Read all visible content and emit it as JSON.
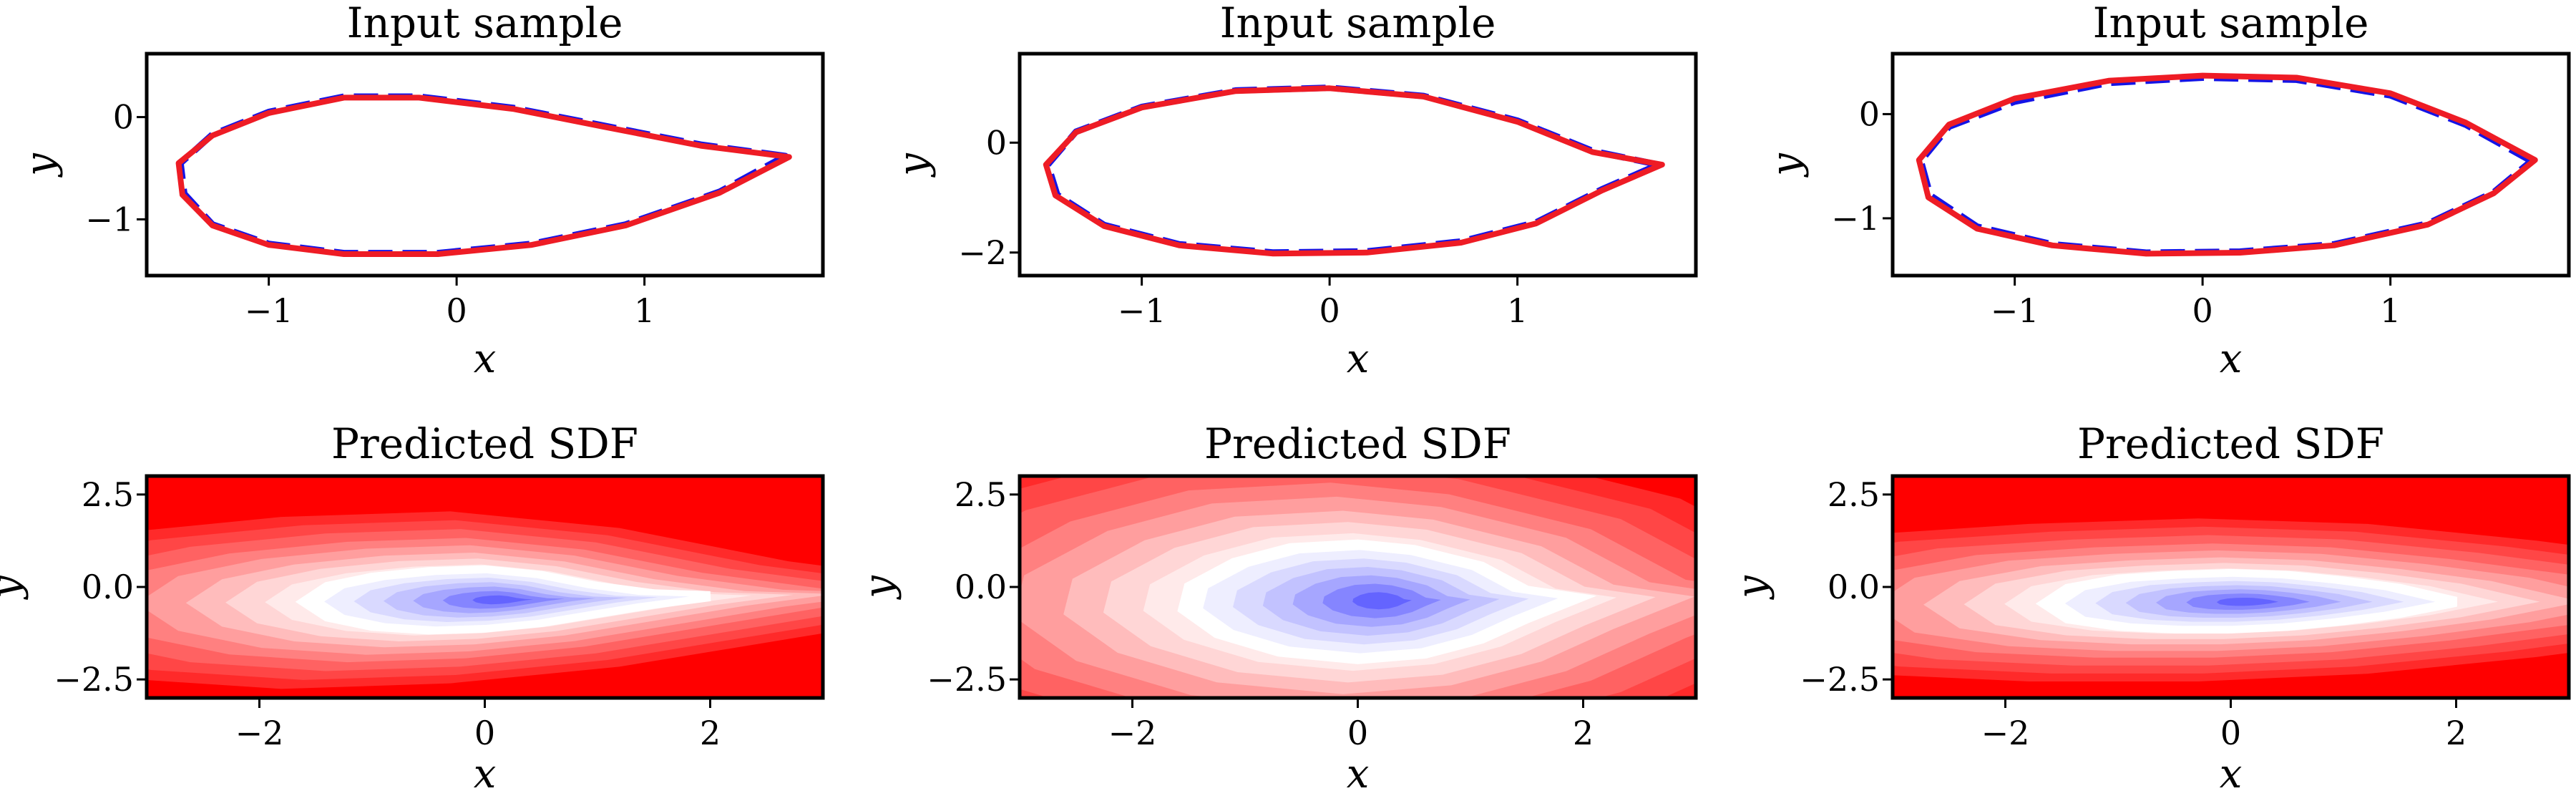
{
  "figure": {
    "background": "#ffffff"
  },
  "colors": {
    "input_line": "#1414e6",
    "predicted_line": "#ee1c25",
    "sdf_positive": "#ff0000",
    "sdf_zero": "#ffffff",
    "sdf_negative": "#3b3bff"
  },
  "chart_data": [
    {
      "type": "line",
      "title": "Input sample",
      "xlabel": "x",
      "ylabel": "y",
      "xlim": [
        -1.65,
        1.95
      ],
      "ylim": [
        -1.55,
        0.62
      ],
      "xticks": [
        -1,
        0,
        1
      ],
      "xtick_labels": [
        "−1",
        "0",
        "1"
      ],
      "yticks": [
        0,
        -1
      ],
      "ytick_labels": [
        "0",
        "−1"
      ],
      "series": [
        {
          "style": "dashed",
          "color": "#1414e6",
          "points": [
            [
              1.75,
              -0.38
            ],
            [
              1.3,
              -0.27
            ],
            [
              0.8,
              -0.09
            ],
            [
              0.3,
              0.09
            ],
            [
              -0.2,
              0.2
            ],
            [
              -0.6,
              0.2
            ],
            [
              -1.0,
              0.05
            ],
            [
              -1.3,
              -0.17
            ],
            [
              -1.47,
              -0.45
            ],
            [
              -1.45,
              -0.75
            ],
            [
              -1.3,
              -1.05
            ],
            [
              -1.0,
              -1.24
            ],
            [
              -0.6,
              -1.33
            ],
            [
              -0.1,
              -1.33
            ],
            [
              0.4,
              -1.24
            ],
            [
              0.9,
              -1.05
            ],
            [
              1.4,
              -0.73
            ],
            [
              1.75,
              -0.38
            ]
          ]
        },
        {
          "style": "solid",
          "color": "#ee1c25",
          "points": [
            [
              1.77,
              -0.39
            ],
            [
              1.3,
              -0.28
            ],
            [
              0.8,
              -0.1
            ],
            [
              0.3,
              0.08
            ],
            [
              -0.2,
              0.19
            ],
            [
              -0.6,
              0.19
            ],
            [
              -1.0,
              0.04
            ],
            [
              -1.3,
              -0.18
            ],
            [
              -1.48,
              -0.45
            ],
            [
              -1.46,
              -0.76
            ],
            [
              -1.3,
              -1.06
            ],
            [
              -1.0,
              -1.25
            ],
            [
              -0.6,
              -1.34
            ],
            [
              -0.1,
              -1.34
            ],
            [
              0.4,
              -1.25
            ],
            [
              0.9,
              -1.06
            ],
            [
              1.4,
              -0.74
            ],
            [
              1.77,
              -0.39
            ]
          ]
        }
      ]
    },
    {
      "type": "line",
      "title": "Input sample",
      "xlabel": "x",
      "ylabel": "y",
      "xlim": [
        -1.65,
        1.95
      ],
      "ylim": [
        -2.42,
        1.62
      ],
      "xticks": [
        -1,
        0,
        1
      ],
      "xtick_labels": [
        "−1",
        "0",
        "1"
      ],
      "yticks": [
        0,
        -2
      ],
      "ytick_labels": [
        "0",
        "−2"
      ],
      "series": [
        {
          "style": "dashed",
          "color": "#1414e6",
          "points": [
            [
              1.75,
              -0.4
            ],
            [
              1.4,
              -0.15
            ],
            [
              1.0,
              0.4
            ],
            [
              0.5,
              0.85
            ],
            [
              0.0,
              1.0
            ],
            [
              -0.5,
              0.95
            ],
            [
              -1.0,
              0.65
            ],
            [
              -1.35,
              0.2
            ],
            [
              -1.5,
              -0.4
            ],
            [
              -1.45,
              -0.95
            ],
            [
              -1.2,
              -1.5
            ],
            [
              -0.8,
              -1.85
            ],
            [
              -0.3,
              -2.0
            ],
            [
              0.2,
              -1.98
            ],
            [
              0.7,
              -1.8
            ],
            [
              1.1,
              -1.45
            ],
            [
              1.45,
              -0.85
            ],
            [
              1.75,
              -0.4
            ]
          ]
        },
        {
          "style": "solid",
          "color": "#ee1c25",
          "points": [
            [
              1.77,
              -0.4
            ],
            [
              1.4,
              -0.17
            ],
            [
              1.0,
              0.38
            ],
            [
              0.5,
              0.84
            ],
            [
              0.0,
              0.99
            ],
            [
              -0.5,
              0.94
            ],
            [
              -1.0,
              0.64
            ],
            [
              -1.35,
              0.19
            ],
            [
              -1.51,
              -0.4
            ],
            [
              -1.46,
              -0.96
            ],
            [
              -1.2,
              -1.52
            ],
            [
              -0.8,
              -1.87
            ],
            [
              -0.3,
              -2.02
            ],
            [
              0.2,
              -2.0
            ],
            [
              0.7,
              -1.82
            ],
            [
              1.1,
              -1.47
            ],
            [
              1.45,
              -0.87
            ],
            [
              1.77,
              -0.4
            ]
          ]
        }
      ]
    },
    {
      "type": "line",
      "title": "Input sample",
      "xlabel": "x",
      "ylabel": "y",
      "xlim": [
        -1.65,
        1.95
      ],
      "ylim": [
        -1.55,
        0.58
      ],
      "xticks": [
        -1,
        0,
        1
      ],
      "xtick_labels": [
        "−1",
        "0",
        "1"
      ],
      "yticks": [
        0,
        -1
      ],
      "ytick_labels": [
        "0",
        "−1"
      ],
      "series": [
        {
          "style": "dashed",
          "color": "#1414e6",
          "points": [
            [
              1.75,
              -0.45
            ],
            [
              1.4,
              -0.1
            ],
            [
              1.0,
              0.18
            ],
            [
              0.5,
              0.33
            ],
            [
              0.0,
              0.35
            ],
            [
              -0.5,
              0.3
            ],
            [
              -1.0,
              0.12
            ],
            [
              -1.35,
              -0.12
            ],
            [
              -1.5,
              -0.45
            ],
            [
              -1.45,
              -0.78
            ],
            [
              -1.2,
              -1.08
            ],
            [
              -0.8,
              -1.25
            ],
            [
              -0.3,
              -1.33
            ],
            [
              0.2,
              -1.32
            ],
            [
              0.7,
              -1.25
            ],
            [
              1.2,
              -1.05
            ],
            [
              1.55,
              -0.75
            ],
            [
              1.75,
              -0.45
            ]
          ]
        },
        {
          "style": "solid",
          "color": "#ee1c25",
          "points": [
            [
              1.77,
              -0.44
            ],
            [
              1.4,
              -0.08
            ],
            [
              1.0,
              0.2
            ],
            [
              0.5,
              0.35
            ],
            [
              0.0,
              0.37
            ],
            [
              -0.5,
              0.32
            ],
            [
              -1.0,
              0.15
            ],
            [
              -1.35,
              -0.1
            ],
            [
              -1.51,
              -0.44
            ],
            [
              -1.46,
              -0.8
            ],
            [
              -1.2,
              -1.1
            ],
            [
              -0.8,
              -1.26
            ],
            [
              -0.3,
              -1.34
            ],
            [
              0.2,
              -1.33
            ],
            [
              0.7,
              -1.26
            ],
            [
              1.2,
              -1.06
            ],
            [
              1.55,
              -0.76
            ],
            [
              1.77,
              -0.44
            ]
          ]
        }
      ]
    },
    {
      "type": "heatmap",
      "title": "Predicted SDF",
      "xlabel": "x",
      "ylabel": "y",
      "xlim": [
        -3,
        3
      ],
      "ylim": [
        -3,
        3
      ],
      "xticks": [
        -2,
        0,
        2
      ],
      "xtick_labels": [
        "−2",
        "0",
        "2"
      ],
      "yticks": [
        2.5,
        0,
        -2.5
      ],
      "ytick_labels": [
        "2.5",
        "0.0",
        "−2.5"
      ],
      "colormap": [
        "#3b3bff",
        "#ffffff",
        "#ff0000"
      ],
      "zero_contour": [
        [
          2.0,
          -0.25
        ],
        [
          1.5,
          -0.2
        ],
        [
          1.0,
          0.0
        ],
        [
          0.5,
          0.3
        ],
        [
          0.0,
          0.45
        ],
        [
          -0.5,
          0.4
        ],
        [
          -1.0,
          0.25
        ],
        [
          -1.4,
          0.0
        ],
        [
          -1.6,
          -0.4
        ],
        [
          -1.4,
          -0.8
        ],
        [
          -1.0,
          -1.05
        ],
        [
          -0.5,
          -1.15
        ],
        [
          0.0,
          -1.1
        ],
        [
          0.5,
          -0.95
        ],
        [
          1.0,
          -0.7
        ],
        [
          1.5,
          -0.45
        ],
        [
          2.0,
          -0.25
        ]
      ]
    },
    {
      "type": "heatmap",
      "title": "Predicted SDF",
      "xlabel": "x",
      "ylabel": "y",
      "xlim": [
        -3,
        3
      ],
      "ylim": [
        -3,
        3
      ],
      "xticks": [
        -2,
        0,
        2
      ],
      "xtick_labels": [
        "−2",
        "0",
        "2"
      ],
      "yticks": [
        2.5,
        0,
        -2.5
      ],
      "ytick_labels": [
        "2.5",
        "0.0",
        "−2.5"
      ],
      "colormap": [
        "#3b3bff",
        "#ffffff",
        "#ff0000"
      ],
      "zero_contour": [
        [
          1.95,
          -0.3
        ],
        [
          1.5,
          -0.1
        ],
        [
          1.1,
          0.55
        ],
        [
          0.5,
          1.0
        ],
        [
          0.0,
          1.15
        ],
        [
          -0.6,
          1.05
        ],
        [
          -1.1,
          0.65
        ],
        [
          -1.5,
          0.0
        ],
        [
          -1.55,
          -0.6
        ],
        [
          -1.25,
          -1.25
        ],
        [
          -0.7,
          -1.75
        ],
        [
          0.0,
          -1.95
        ],
        [
          0.6,
          -1.8
        ],
        [
          1.1,
          -1.4
        ],
        [
          1.5,
          -0.85
        ],
        [
          1.95,
          -0.3
        ]
      ]
    },
    {
      "type": "heatmap",
      "title": "Predicted SDF",
      "xlabel": "x",
      "ylabel": "y",
      "xlim": [
        -3,
        3
      ],
      "ylim": [
        -3,
        3
      ],
      "xticks": [
        -2,
        0,
        2
      ],
      "xtick_labels": [
        "−2",
        "0",
        "2"
      ],
      "yticks": [
        2.5,
        0,
        -2.5
      ],
      "ytick_labels": [
        "2.5",
        "0.0",
        "−2.5"
      ],
      "colormap": [
        "#3b3bff",
        "#ffffff",
        "#ff0000"
      ],
      "zero_contour": [
        [
          2.0,
          -0.4
        ],
        [
          1.5,
          -0.05
        ],
        [
          1.0,
          0.15
        ],
        [
          0.5,
          0.3
        ],
        [
          0.0,
          0.35
        ],
        [
          -0.5,
          0.3
        ],
        [
          -1.0,
          0.2
        ],
        [
          -1.45,
          -0.05
        ],
        [
          -1.65,
          -0.45
        ],
        [
          -1.45,
          -0.85
        ],
        [
          -1.0,
          -1.05
        ],
        [
          -0.5,
          -1.12
        ],
        [
          0.0,
          -1.12
        ],
        [
          0.5,
          -1.05
        ],
        [
          1.0,
          -0.9
        ],
        [
          1.5,
          -0.7
        ],
        [
          2.0,
          -0.4
        ]
      ]
    }
  ]
}
